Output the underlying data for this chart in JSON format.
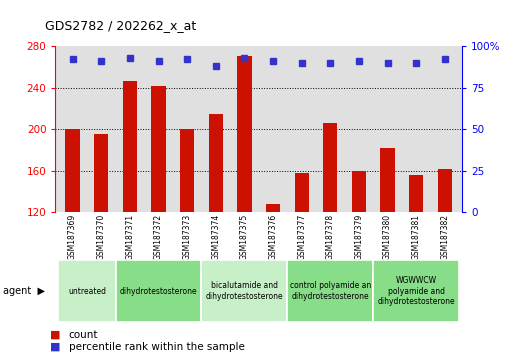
{
  "title": "GDS2782 / 202262_x_at",
  "samples": [
    "GSM187369",
    "GSM187370",
    "GSM187371",
    "GSM187372",
    "GSM187373",
    "GSM187374",
    "GSM187375",
    "GSM187376",
    "GSM187377",
    "GSM187378",
    "GSM187379",
    "GSM187380",
    "GSM187381",
    "GSM187382"
  ],
  "count_values": [
    200,
    195,
    246,
    242,
    200,
    215,
    270,
    128,
    158,
    206,
    160,
    182,
    156,
    162
  ],
  "percentile_values": [
    92,
    91,
    93,
    91,
    92,
    88,
    93,
    91,
    90,
    90,
    91,
    90,
    90,
    92
  ],
  "ylim_left": [
    120,
    280
  ],
  "ylim_right": [
    0,
    100
  ],
  "yticks_left": [
    120,
    160,
    200,
    240,
    280
  ],
  "yticks_right": [
    0,
    25,
    50,
    75,
    100
  ],
  "bar_color": "#cc1100",
  "dot_color": "#3333cc",
  "bg_color": "#e0e0e0",
  "xlim": [
    -0.6,
    13.6
  ],
  "groups": [
    {
      "label": "untreated",
      "start": 0,
      "end": 1,
      "color": "#c8f0c8"
    },
    {
      "label": "dihydrotestosterone",
      "start": 2,
      "end": 4,
      "color": "#88dd88"
    },
    {
      "label": "bicalutamide and\ndihydrotestosterone",
      "start": 5,
      "end": 7,
      "color": "#c8f0c8"
    },
    {
      "label": "control polyamide an\ndihydrotestosterone",
      "start": 8,
      "end": 10,
      "color": "#88dd88"
    },
    {
      "label": "WGWWCW\npolyamide and\ndihydrotestosterone",
      "start": 11,
      "end": 13,
      "color": "#88dd88"
    }
  ],
  "legend_count_label": "count",
  "legend_pct_label": "percentile rank within the sample"
}
